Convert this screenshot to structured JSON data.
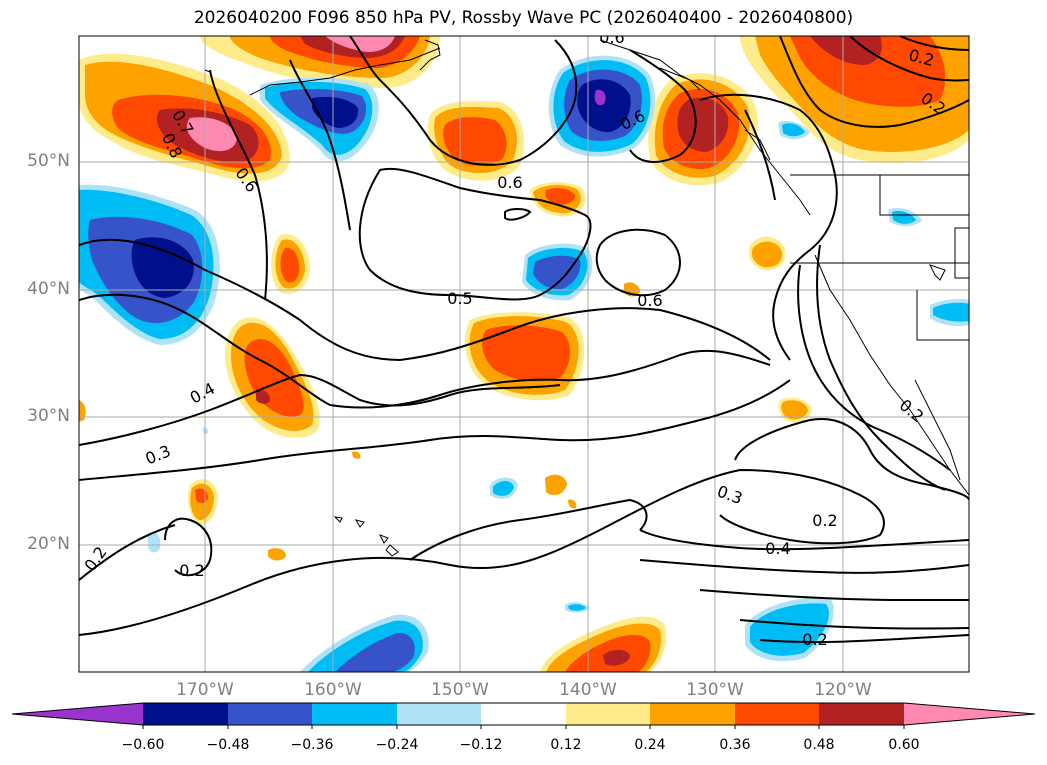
{
  "title": "2026040200 F096 850 hPa PV, Rossby Wave PC (2026040400 - 2026040800)",
  "longitude_labels": [
    "170°W",
    "160°W",
    "150°W",
    "140°W",
    "130°W",
    "120°W"
  ],
  "latitude_labels": [
    "50°N",
    "40°N",
    "30°N",
    "20°N"
  ],
  "contour_labels": [
    "0.7",
    "0.8",
    "0.6",
    "0.6",
    "0.6",
    "0.6",
    "0.2",
    "0.2",
    "0.5",
    "0.6",
    "0.4",
    "0.3",
    "0.3",
    "0.2",
    "0.4",
    "0.2",
    "0.2",
    "0.2",
    "0.2"
  ],
  "colorbar": {
    "tick_labels": [
      "−0.60",
      "−0.48",
      "−0.36",
      "−0.24",
      "−0.12",
      "0.12",
      "0.24",
      "0.36",
      "0.48",
      "0.60"
    ],
    "colors": [
      "#9a34cf",
      "#000f8c",
      "#3653c9",
      "#00bcf4",
      "#aee3f7",
      "#ffffff",
      "#feec8a",
      "#fea200",
      "#ff4800",
      "#b22222",
      "#ff89b0"
    ]
  }
}
